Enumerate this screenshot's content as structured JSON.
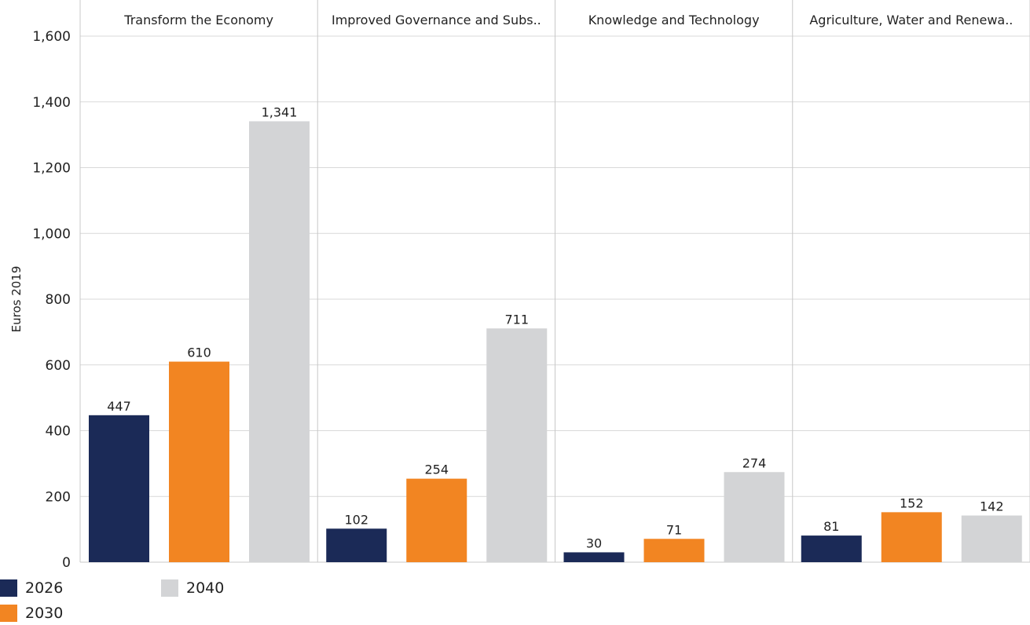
{
  "chart_data": {
    "type": "bar",
    "panels": [
      "Transform the Economy",
      "Improved Governance and Subs..",
      "Knowledge and Technology",
      "Agriculture, Water and Renewa.."
    ],
    "series": [
      {
        "name": "2026",
        "color": "#1b2a57",
        "values": [
          447,
          102,
          30,
          81
        ]
      },
      {
        "name": "2030",
        "color": "#f28522",
        "values": [
          610,
          254,
          71,
          152
        ]
      },
      {
        "name": "2040",
        "color": "#d3d4d6",
        "values": [
          1341,
          711,
          274,
          142
        ]
      }
    ],
    "value_labels": [
      [
        "447",
        "102",
        "30",
        "81"
      ],
      [
        "610",
        "254",
        "71",
        "152"
      ],
      [
        "1,341",
        "711",
        "274",
        "142"
      ]
    ],
    "ylabel": "Euros 2019",
    "ylim": [
      0,
      1600
    ],
    "yticks": [
      0,
      200,
      400,
      600,
      800,
      1000,
      1200,
      1400,
      1600
    ],
    "ytick_labels": [
      "0",
      "200",
      "400",
      "600",
      "800",
      "1,000",
      "1,200",
      "1,400",
      "1,600"
    ],
    "grid": true,
    "legend_position": "bottom-left"
  }
}
